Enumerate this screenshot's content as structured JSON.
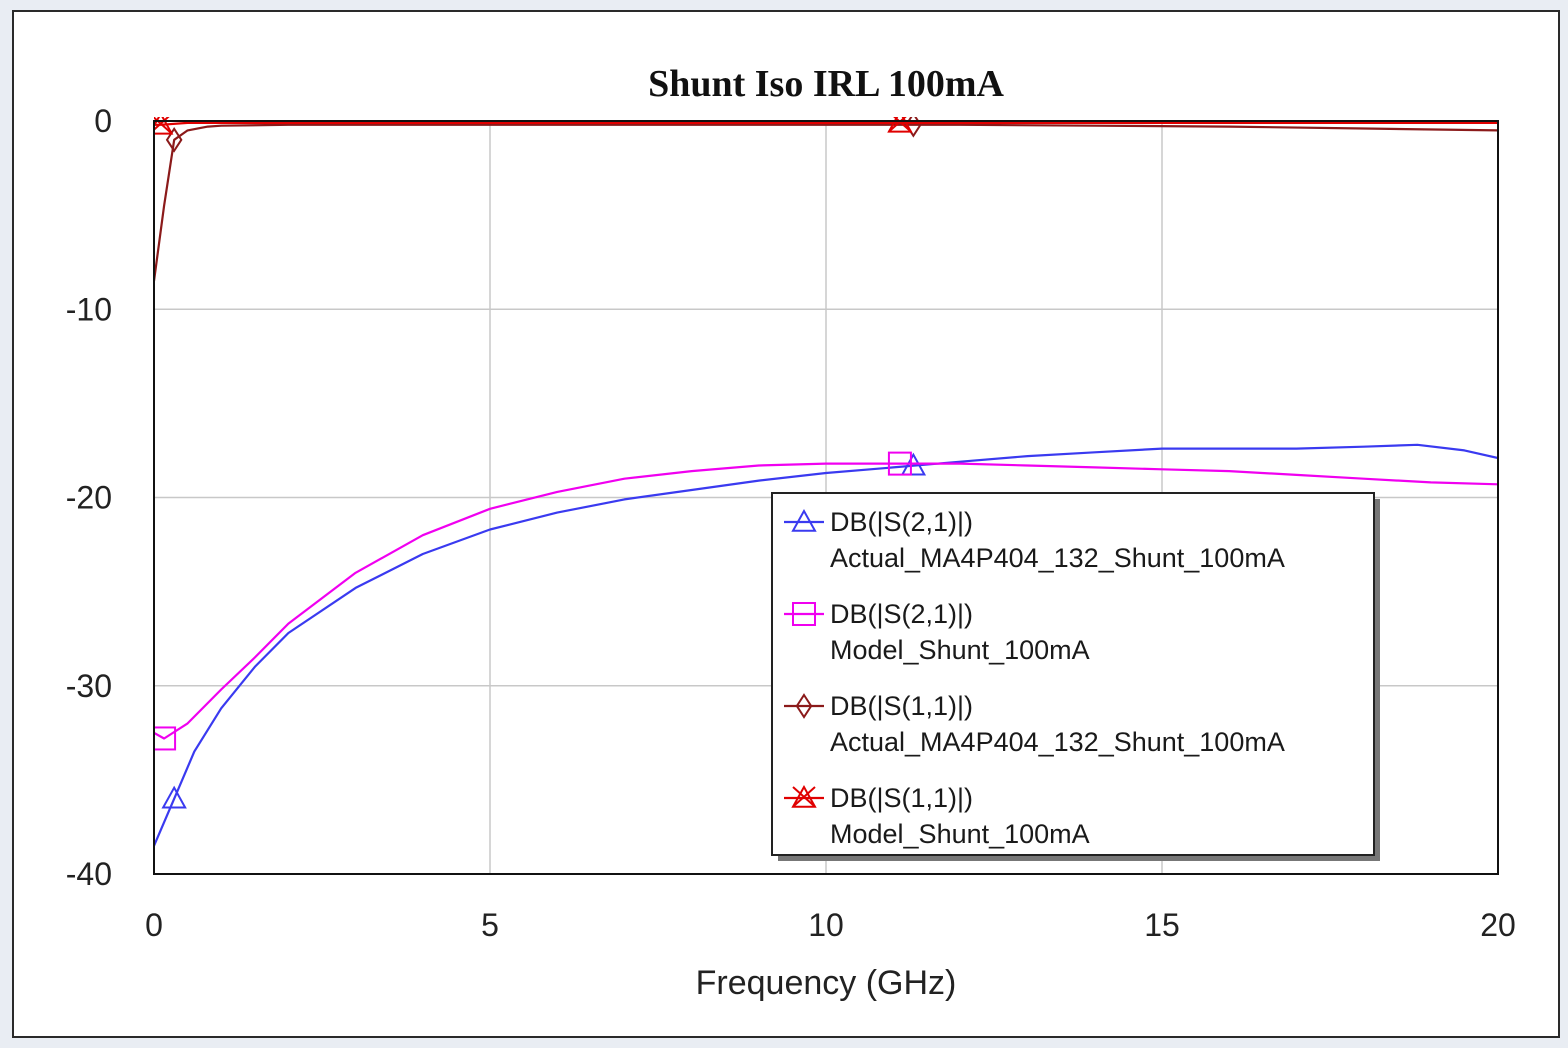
{
  "chart_data": {
    "type": "line",
    "title": "Shunt Iso IRL 100mA",
    "xlabel": "Frequency (GHz)",
    "ylabel": "",
    "xlim": [
      0,
      20
    ],
    "ylim": [
      -40,
      0
    ],
    "xticks": [
      "0",
      "5",
      "10",
      "15",
      "20"
    ],
    "yticks": [
      "0",
      "-10",
      "-20",
      "-30",
      "-40"
    ],
    "grid": true,
    "legend_position": "center-right",
    "series": [
      {
        "name": "DB(|S(2,1)|)",
        "name2": "Actual_MA4P404_132_Shunt_100mA",
        "color": "#3a3af0",
        "marker": "triangle",
        "marker_x": [
          0.3,
          11.3
        ],
        "x": [
          0,
          0.3,
          0.6,
          1,
          1.5,
          2,
          3,
          4,
          5,
          6,
          7,
          8,
          9,
          10,
          11,
          12,
          13,
          14,
          15,
          16,
          17,
          18,
          18.8,
          19.5,
          20
        ],
        "y": [
          -38.5,
          -36,
          -33.5,
          -31.2,
          -29,
          -27.2,
          -24.8,
          -23,
          -21.7,
          -20.8,
          -20.1,
          -19.6,
          -19.1,
          -18.7,
          -18.4,
          -18.1,
          -17.8,
          -17.6,
          -17.4,
          -17.4,
          -17.4,
          -17.3,
          -17.2,
          -17.5,
          -17.9
        ]
      },
      {
        "name": "DB(|S(2,1)|)",
        "name2": "Model_Shunt_100mA",
        "color": "#f000f0",
        "marker": "square",
        "marker_x": [
          0.15,
          11.1
        ],
        "x": [
          0,
          0.15,
          0.5,
          1,
          1.5,
          2,
          3,
          4,
          5,
          6,
          7,
          8,
          9,
          10,
          11,
          12,
          13,
          14,
          15,
          16,
          17,
          18,
          19,
          20
        ],
        "y": [
          -32.5,
          -32.8,
          -32.0,
          -30.2,
          -28.5,
          -26.7,
          -24.0,
          -22.0,
          -20.6,
          -19.7,
          -19.0,
          -18.6,
          -18.3,
          -18.2,
          -18.2,
          -18.2,
          -18.3,
          -18.4,
          -18.5,
          -18.6,
          -18.8,
          -19.0,
          -19.2,
          -19.3
        ]
      },
      {
        "name": "DB(|S(1,1)|)",
        "name2": "Actual_MA4P404_132_Shunt_100mA",
        "color": "#8b1a1a",
        "marker": "diamond",
        "marker_x": [
          0.3,
          11.3
        ],
        "x": [
          0,
          0.15,
          0.3,
          0.5,
          0.8,
          1,
          2,
          4,
          6,
          8,
          10,
          11,
          12,
          14,
          16,
          18,
          20
        ],
        "y": [
          -8.5,
          -4.5,
          -1.0,
          -0.5,
          -0.3,
          -0.25,
          -0.2,
          -0.2,
          -0.2,
          -0.2,
          -0.2,
          -0.2,
          -0.2,
          -0.25,
          -0.3,
          -0.4,
          -0.5
        ]
      },
      {
        "name": "DB(|S(1,1)|)",
        "name2": "Model_Shunt_100mA",
        "color": "#e00000",
        "marker": "x-triangle",
        "marker_x": [
          0.1,
          11.1
        ],
        "x": [
          0,
          0.1,
          0.5,
          1,
          2,
          4,
          6,
          8,
          10,
          12,
          14,
          16,
          18,
          20
        ],
        "y": [
          -0.2,
          -0.2,
          -0.1,
          -0.1,
          -0.1,
          -0.1,
          -0.1,
          -0.1,
          -0.1,
          -0.1,
          -0.1,
          -0.1,
          -0.1,
          -0.1
        ]
      }
    ]
  }
}
